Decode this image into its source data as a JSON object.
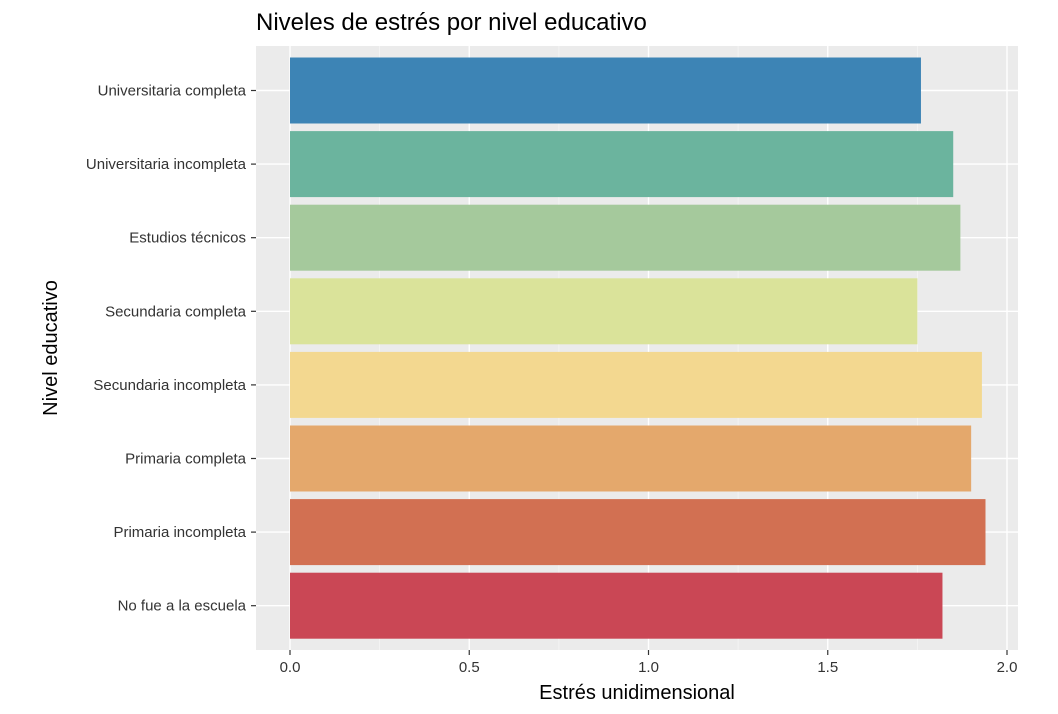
{
  "chart_data": {
    "type": "bar",
    "orientation": "horizontal",
    "title": "Niveles de estrés por nivel educativo",
    "xlabel": "Estrés unidimensional",
    "ylabel": "Nivel educativo",
    "xlim": [
      0,
      2.0
    ],
    "xticks": [
      "0.0",
      "0.5",
      "1.0",
      "1.5",
      "2.0"
    ],
    "grid": true,
    "legend": "none",
    "categories": [
      "Universitaria completa",
      "Universitaria incompleta",
      "Estudios técnicos",
      "Secundaria completa",
      "Secundaria incompleta",
      "Primaria completa",
      "Primaria incompleta",
      "No fue a la escuela"
    ],
    "values": [
      1.76,
      1.85,
      1.87,
      1.75,
      1.93,
      1.9,
      1.94,
      1.82
    ],
    "colors": [
      "#3780b3",
      "#66b29b",
      "#a2c799",
      "#d9e297",
      "#f3d78c",
      "#e3a567",
      "#d16b4c",
      "#c84150"
    ],
    "panel_background": "#ebebeb",
    "gridline_color": "#ffffff"
  }
}
